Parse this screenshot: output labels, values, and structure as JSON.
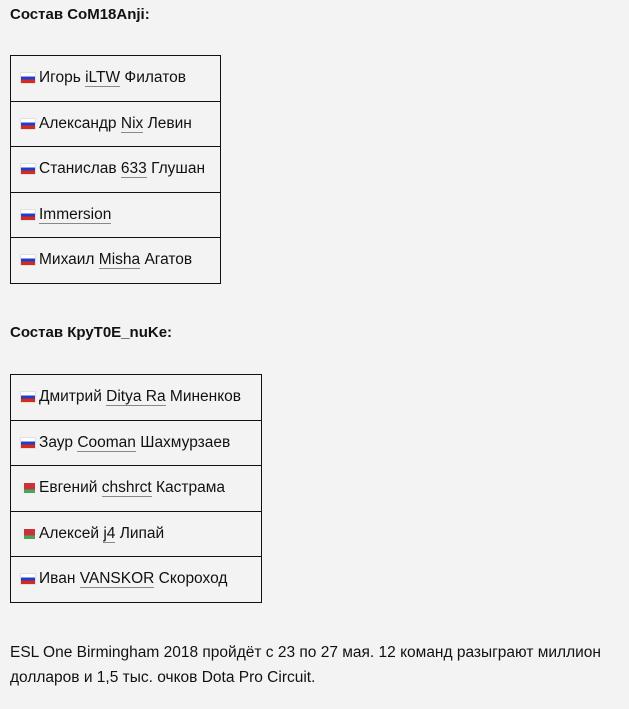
{
  "teams": [
    {
      "title": "Состав CoM18Anji:",
      "players": [
        {
          "flag": "ru",
          "first": "Игорь",
          "nick": "iLTW",
          "last": "Филатов"
        },
        {
          "flag": "ru",
          "first": "Александр",
          "nick": "Nix",
          "last": "Левин"
        },
        {
          "flag": "ru",
          "first": "Станислав",
          "nick": "633",
          "last": "Глушан"
        },
        {
          "flag": "ru",
          "first": "",
          "nick": "Immersion",
          "last": ""
        },
        {
          "flag": "ru",
          "first": "Михаил",
          "nick": "Misha",
          "last": "Агатов"
        }
      ]
    },
    {
      "title": "Состав КруТ0Е_nuKe:",
      "players": [
        {
          "flag": "ru",
          "first": "Дмитрий",
          "nick": "Ditya Ra",
          "last": "Миненков"
        },
        {
          "flag": "ru",
          "first": "Заур",
          "nick": "Cooman",
          "last": "Шахмурзаев"
        },
        {
          "flag": "by",
          "first": "Евгений",
          "nick": "chshrct",
          "last": "Кастрама"
        },
        {
          "flag": "by",
          "first": "Алексей",
          "nick": "j4",
          "last": "Липай"
        },
        {
          "flag": "ru",
          "first": "Иван",
          "nick": "VANSKOR",
          "last": "Скороход"
        }
      ]
    }
  ],
  "paragraph": "ESL One Birmingham 2018 пройдёт с 23 по 27 мая. 12 команд разыграют миллион долларов и 1,5 тыс. очков Dota Pro Circuit."
}
